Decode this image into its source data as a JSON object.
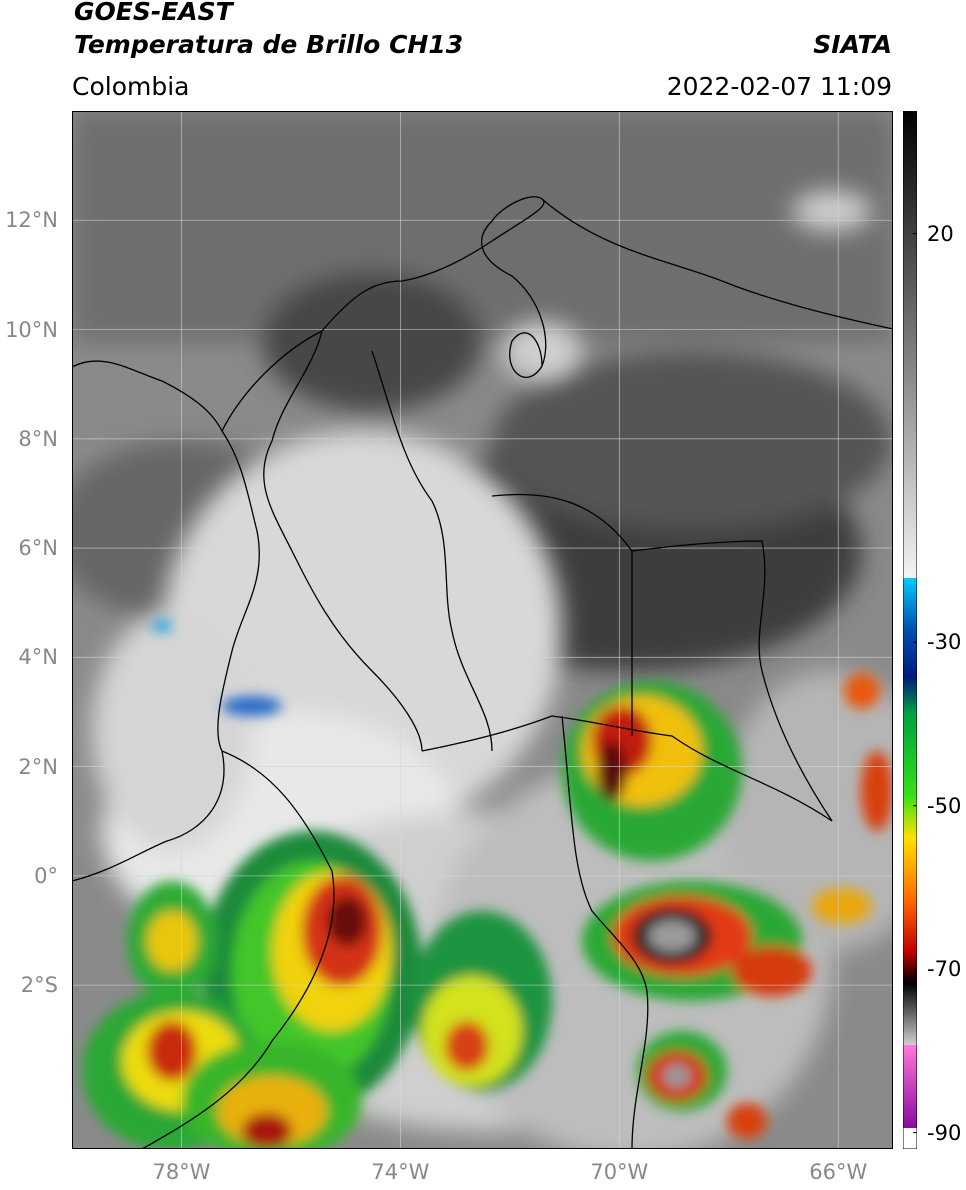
{
  "header": {
    "satellite": "GOES-EAST",
    "product": "Temperatura de Brillo CH13",
    "organization": "SIATA",
    "region": "Colombia",
    "timestamp": "2022-02-07 11:09"
  },
  "map": {
    "lon_range": [
      -80.0,
      -65.0
    ],
    "lat_range": [
      -5.0,
      14.0
    ],
    "gridlines": true,
    "lat_ticks": [
      {
        "value": 12,
        "label": "12°N"
      },
      {
        "value": 10,
        "label": "10°N"
      },
      {
        "value": 8,
        "label": "8°N"
      },
      {
        "value": 6,
        "label": "6°N"
      },
      {
        "value": 4,
        "label": "4°N"
      },
      {
        "value": 2,
        "label": "2°N"
      },
      {
        "value": 0,
        "label": "0°"
      },
      {
        "value": -2,
        "label": "2°S"
      }
    ],
    "lon_ticks": [
      {
        "value": -78,
        "label": "78°W"
      },
      {
        "value": -74,
        "label": "74°W"
      },
      {
        "value": -70,
        "label": "70°W"
      },
      {
        "value": -66,
        "label": "66°W"
      }
    ],
    "colors": {
      "background": "#b8b8b8",
      "warm": "#4a4a4a",
      "border": "#000000",
      "grid": "#cfcfcf"
    }
  },
  "colorbar": {
    "range": [
      -92,
      35
    ],
    "ticks": [
      {
        "value": 20,
        "label": "20"
      },
      {
        "value": -30,
        "label": "-30"
      },
      {
        "value": -50,
        "label": "-50"
      },
      {
        "value": -70,
        "label": "-70"
      },
      {
        "value": -90,
        "label": "-90"
      }
    ]
  }
}
